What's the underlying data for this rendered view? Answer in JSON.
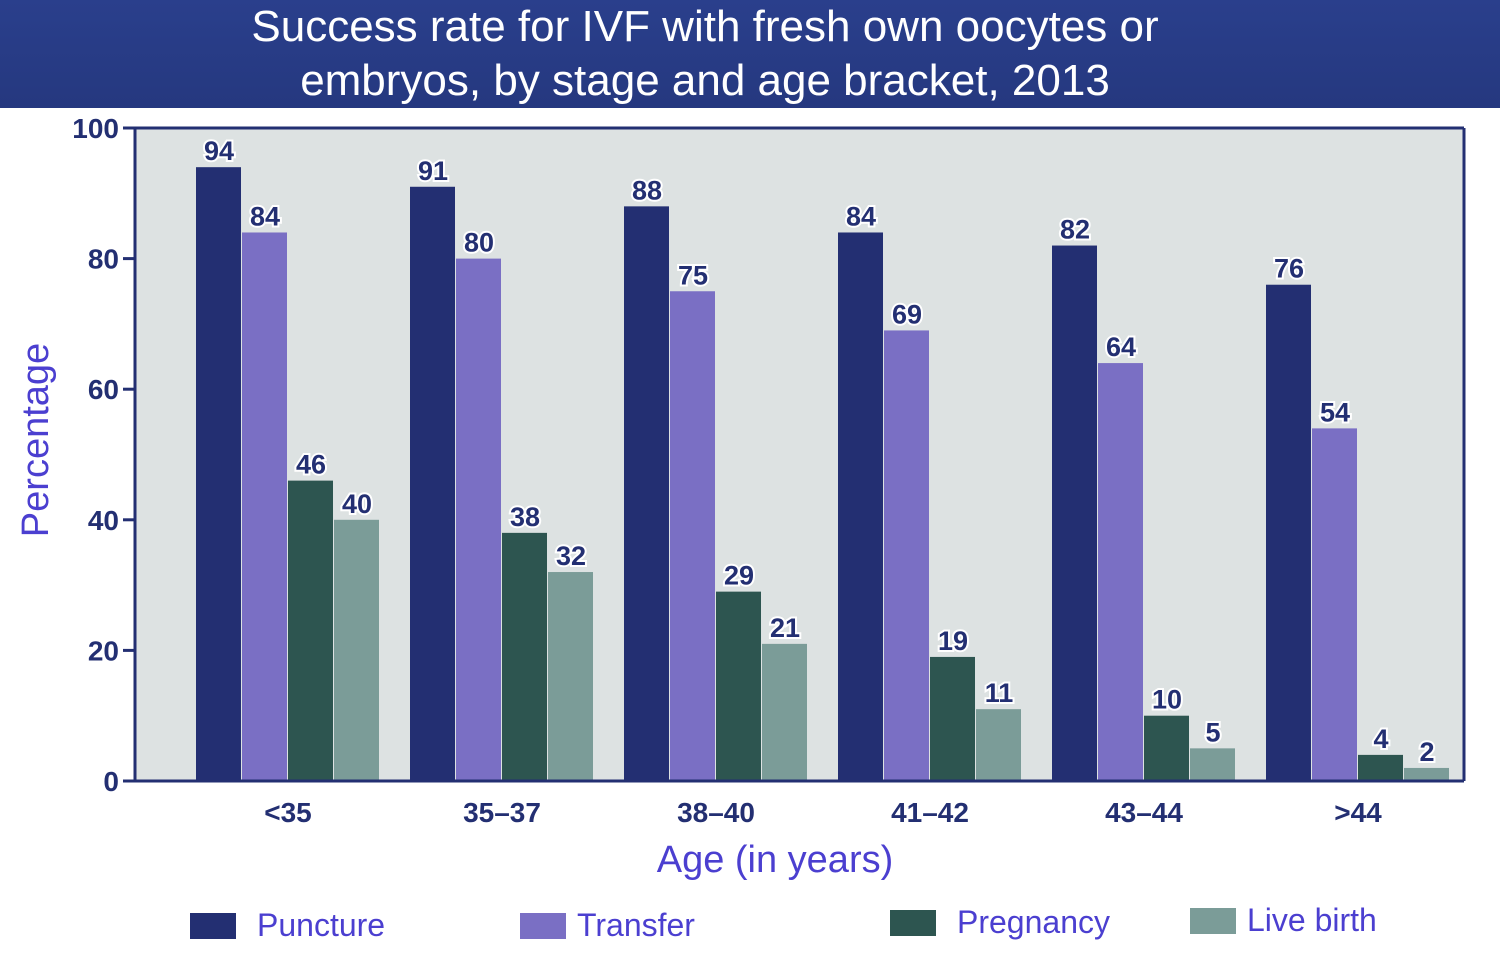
{
  "chart_data": {
    "type": "bar",
    "title": "Success rate for IVF with fresh own oocytes or embryos, by stage and age bracket, 2013",
    "title_lines": [
      "Success rate for IVF with fresh own oocytes or",
      "embryos, by stage and age bracket, 2013"
    ],
    "xlabel": "Age (in years)",
    "ylabel": "Percentage",
    "ylim": [
      0,
      100
    ],
    "yticks": [
      0,
      20,
      40,
      60,
      80,
      100
    ],
    "categories": [
      "<35",
      "35–37",
      "38–40",
      "41–42",
      "43–44",
      ">44"
    ],
    "series": [
      {
        "name": "Puncture",
        "color": "#232f72",
        "values": [
          94,
          91,
          88,
          84,
          82,
          76
        ]
      },
      {
        "name": "Transfer",
        "color": "#7a6fc4",
        "values": [
          84,
          80,
          75,
          69,
          64,
          54
        ]
      },
      {
        "name": "Pregnancy",
        "color": "#2d5550",
        "values": [
          46,
          38,
          29,
          19,
          10,
          4
        ]
      },
      {
        "name": "Live birth",
        "color": "#7b9c98",
        "values": [
          40,
          32,
          21,
          11,
          5,
          2
        ]
      }
    ],
    "legend_position": "bottom",
    "grid": false,
    "plot_background": "#dde2e2",
    "axis_color": "#232f72"
  }
}
